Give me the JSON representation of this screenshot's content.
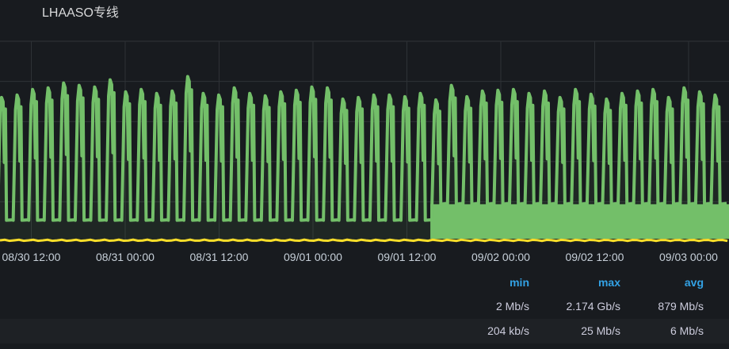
{
  "panel": {
    "title": "LHAASO专线"
  },
  "colors": {
    "series_a": "#73bf69",
    "series_b": "#fade2a",
    "legend_header": "#33a2e5",
    "grid": "#2f3337"
  },
  "chart_data": {
    "type": "line",
    "x_range": [
      "08/30 08:00",
      "09/03 05:10"
    ],
    "x_ticks": [
      "08/30 12:00",
      "08/31 00:00",
      "08/31 12:00",
      "09/01 00:00",
      "09/01 12:00",
      "09/02 00:00",
      "09/02 12:00",
      "09/03 00:00"
    ],
    "y_unit": "Gb/s",
    "ylim": [
      0,
      2.5
    ],
    "grid": true,
    "series": [
      {
        "peaks": [
          1.8,
          1.83,
          1.9,
          1.92,
          1.98,
          1.95,
          1.93,
          2.02,
          1.87,
          1.9,
          1.85,
          1.88,
          2.06,
          1.85,
          1.83,
          1.92,
          1.85,
          1.82,
          1.87,
          1.89,
          1.93,
          1.92,
          1.78,
          1.8,
          1.83,
          1.83,
          1.81,
          1.85,
          1.77,
          1.95,
          1.81,
          1.88,
          1.89,
          1.9,
          1.85,
          1.88,
          1.8,
          1.9,
          1.84,
          1.78,
          1.85,
          1.88,
          1.9,
          1.8,
          1.92,
          1.87,
          1.83
        ],
        "trough_before": 0.27,
        "trough_after": 0.47,
        "trough_change": "09/01 15:00"
      },
      {
        "level": 0.02
      }
    ]
  },
  "legend": {
    "headers": [
      "min",
      "max",
      "avg"
    ],
    "rows": [
      [
        "2 Mb/s",
        "2.174 Gb/s",
        "879 Mb/s"
      ],
      [
        "204 kb/s",
        "25 Mb/s",
        "6 Mb/s"
      ]
    ]
  }
}
